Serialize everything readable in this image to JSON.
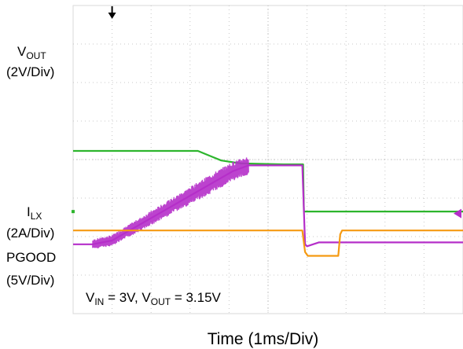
{
  "chart_data": {
    "type": "line",
    "title": "",
    "xlabel": "Time (1ms/Div)",
    "condition": {
      "vin_prefix": "V",
      "vin_sub": "IN",
      "vin_value": " = 3V, ",
      "vout_prefix": "V",
      "vout_sub": "OUT",
      "vout_value": " = 3.15V"
    },
    "grid": true,
    "xlim": [
      0,
      10
    ],
    "divisions": {
      "x": 10,
      "y": 8
    },
    "series": [
      {
        "key": "vout",
        "name_prefix": "V",
        "name_sub": "OUT",
        "scale": "(2V/Div)",
        "unit": "V",
        "color": "#2db52d",
        "ylim": [
          -5.3,
          10.7
        ],
        "x": [
          0,
          3.2,
          3.5,
          3.8,
          4.3,
          5.4,
          5.9,
          5.92,
          10
        ],
        "y": [
          3.15,
          3.15,
          2.9,
          2.65,
          2.5,
          2.45,
          2.45,
          0,
          0
        ]
      },
      {
        "key": "ilx",
        "name_prefix": "I",
        "name_sub": "LX",
        "scale": "(2A/Div)",
        "unit": "A",
        "color": "#b52fc9",
        "ylim": [
          -3.6,
          12.4
        ],
        "x": [
          0,
          0.5,
          1.0,
          4.1,
          4.5,
          5.88,
          5.95,
          6.0,
          6.3,
          10
        ],
        "y": [
          0,
          0,
          0.2,
          3.8,
          4.1,
          4.1,
          0,
          -0.1,
          0.1,
          0.1
        ]
      },
      {
        "key": "pgood",
        "name_prefix": "PGOOD",
        "name_sub": "",
        "scale": "(5V/Div)",
        "unit": "V",
        "color": "#f59a12",
        "ylim": [
          -7.5,
          32.5
        ],
        "x": [
          0,
          5.88,
          5.95,
          6.02,
          6.8,
          6.85,
          6.9,
          10
        ],
        "y": [
          3.3,
          3.3,
          0.5,
          0,
          0,
          2.8,
          3.3,
          3.3
        ]
      }
    ]
  }
}
